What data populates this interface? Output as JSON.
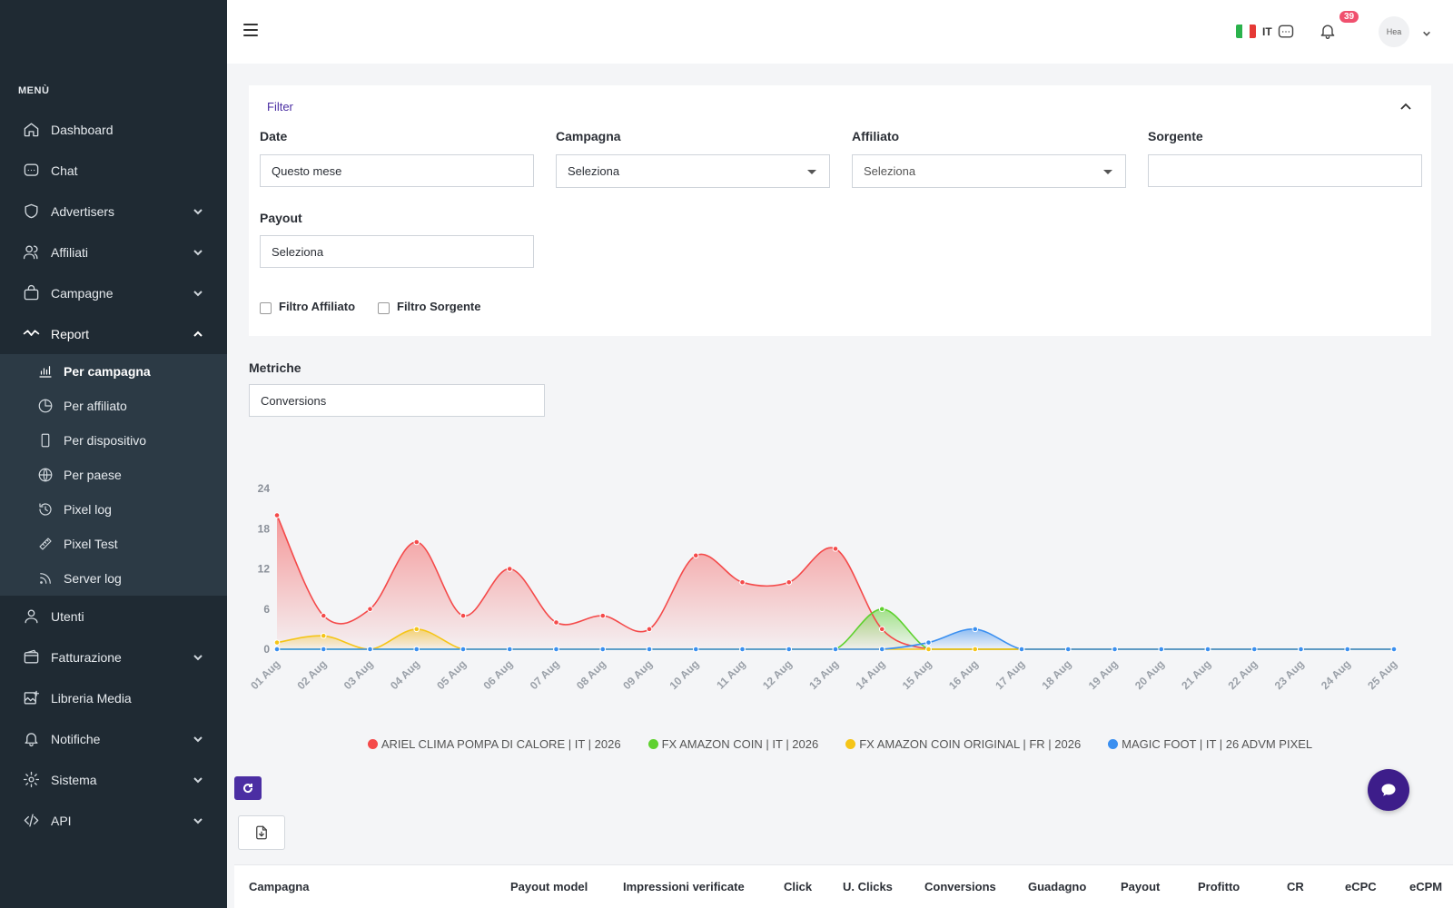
{
  "sidebar": {
    "menu_title": "MENÙ",
    "items": [
      {
        "label": "Dashboard",
        "icon": "home-icon",
        "expandable": false
      },
      {
        "label": "Chat",
        "icon": "chat-icon",
        "expandable": false
      },
      {
        "label": "Advertisers",
        "icon": "shield-icon",
        "expandable": true
      },
      {
        "label": "Affiliati",
        "icon": "users-icon",
        "expandable": true
      },
      {
        "label": "Campagne",
        "icon": "bag-icon",
        "expandable": true
      },
      {
        "label": "Report",
        "icon": "activity-icon",
        "expandable": true,
        "open": true
      },
      {
        "label": "Utenti",
        "icon": "user-icon",
        "expandable": false
      },
      {
        "label": "Fatturazione",
        "icon": "wallet-icon",
        "expandable": true
      },
      {
        "label": "Libreria Media",
        "icon": "image-add-icon",
        "expandable": false
      },
      {
        "label": "Notifiche",
        "icon": "bell-icon",
        "expandable": true
      },
      {
        "label": "Sistema",
        "icon": "gear-icon",
        "expandable": true
      },
      {
        "label": "API",
        "icon": "code-icon",
        "expandable": true
      }
    ],
    "report_submenu": [
      {
        "label": "Per campagna",
        "icon": "bar-chart-icon",
        "current": true
      },
      {
        "label": "Per affiliato",
        "icon": "pie-chart-icon"
      },
      {
        "label": "Per dispositivo",
        "icon": "phone-icon"
      },
      {
        "label": "Per paese",
        "icon": "globe-icon"
      },
      {
        "label": "Pixel log",
        "icon": "history-icon"
      },
      {
        "label": "Pixel Test",
        "icon": "ruler-icon"
      },
      {
        "label": "Server log",
        "icon": "rss-icon"
      }
    ]
  },
  "header": {
    "language_code": "IT",
    "flag_colors": [
      "#2bb24c",
      "#ffffff",
      "#e53935"
    ],
    "notification_count": "39",
    "avatar_alt": "Hea"
  },
  "filter": {
    "title": "Filter",
    "date_label": "Date",
    "date_value": "Questo mese",
    "campaign_label": "Campagna",
    "campaign_value": "Seleziona",
    "affiliate_label": "Affiliato",
    "affiliate_value": "Seleziona",
    "source_label": "Sorgente",
    "source_value": "",
    "payout_label": "Payout",
    "payout_value": "Seleziona",
    "checkbox_affiliate": "Filtro Affiliato",
    "checkbox_source": "Filtro Sorgente"
  },
  "metrics": {
    "label": "Metriche",
    "value": "Conversions"
  },
  "chart_data": {
    "type": "area",
    "title": "",
    "xlabel": "",
    "ylabel": "",
    "ylim": [
      0,
      24
    ],
    "yticks": [
      0,
      6,
      12,
      18,
      24
    ],
    "grid": false,
    "legend_position": "bottom",
    "x": [
      "01 Aug",
      "02 Aug",
      "03 Aug",
      "04 Aug",
      "05 Aug",
      "06 Aug",
      "07 Aug",
      "08 Aug",
      "09 Aug",
      "10 Aug",
      "11 Aug",
      "12 Aug",
      "13 Aug",
      "14 Aug",
      "15 Aug",
      "16 Aug",
      "17 Aug",
      "18 Aug",
      "19 Aug",
      "20 Aug",
      "21 Aug",
      "22 Aug",
      "23 Aug",
      "24 Aug",
      "25 Aug"
    ],
    "series": [
      {
        "name": "ARIEL CLIMA POMPA DI CALORE | IT | 2026",
        "color": "#f44a4a",
        "values": [
          20,
          5,
          6,
          16,
          5,
          12,
          4,
          5,
          3,
          14,
          10,
          10,
          15,
          3,
          0,
          0,
          0,
          0,
          0,
          0,
          0,
          0,
          0,
          0,
          0
        ]
      },
      {
        "name": "FX AMAZON COIN | IT | 2026",
        "color": "#5fd12f",
        "values": [
          0,
          0,
          0,
          0,
          0,
          0,
          0,
          0,
          0,
          0,
          0,
          0,
          0,
          6,
          0,
          0,
          0,
          0,
          0,
          0,
          0,
          0,
          0,
          0,
          0
        ]
      },
      {
        "name": "FX AMAZON COIN ORIGINAL | FR | 2026",
        "color": "#f5c518",
        "values": [
          1,
          2,
          0,
          3,
          0,
          0,
          0,
          0,
          0,
          0,
          0,
          0,
          0,
          0,
          0,
          0,
          0,
          0,
          0,
          0,
          0,
          0,
          0,
          0,
          0
        ]
      },
      {
        "name": "MAGIC FOOT | IT | 26 ADVM PIXEL",
        "color": "#3a8ff0",
        "values": [
          0,
          0,
          0,
          0,
          0,
          0,
          0,
          0,
          0,
          0,
          0,
          0,
          0,
          0,
          1,
          3,
          0,
          0,
          0,
          0,
          0,
          0,
          0,
          0,
          0
        ]
      }
    ]
  },
  "table": {
    "columns": [
      "Campagna",
      "Payout model",
      "Impressioni verificate",
      "Click",
      "U. Clicks",
      "Conversions",
      "Guadagno",
      "Payout",
      "Profitto",
      "CR",
      "eCPC",
      "eCPM"
    ]
  }
}
